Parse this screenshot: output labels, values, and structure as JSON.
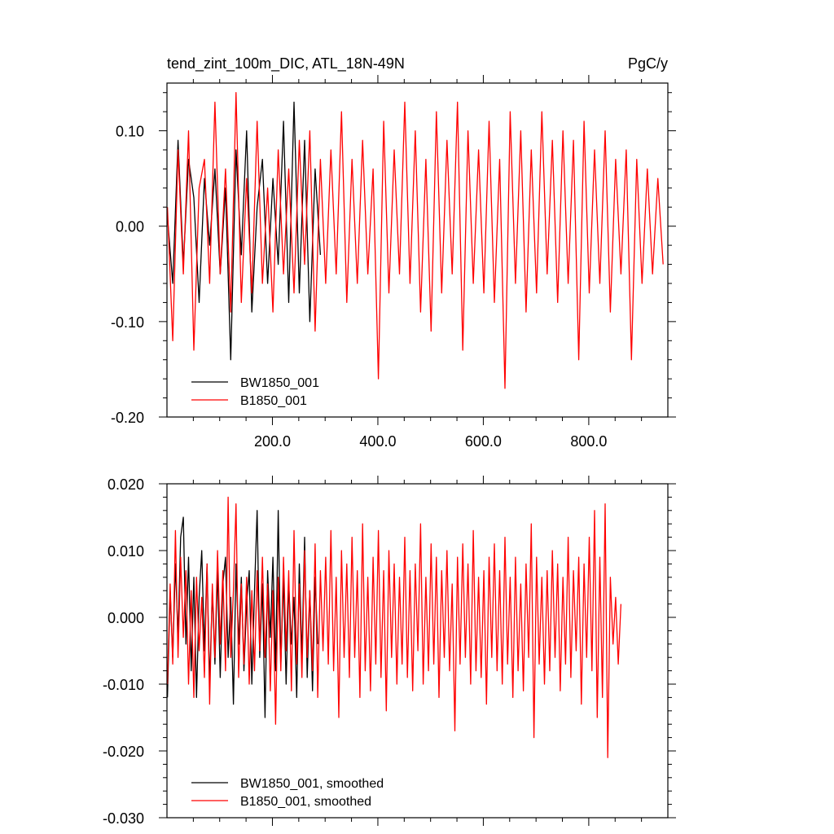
{
  "figure": {
    "title_left": "tend_zint_100m_DIC, ATL_18N-49N",
    "title_right": "PgC/y"
  },
  "chart_data": [
    {
      "type": "line",
      "id": "raw",
      "xlim": [
        0,
        950
      ],
      "ylim": [
        -0.2,
        0.15
      ],
      "xticks": [
        200,
        400,
        600,
        800
      ],
      "xtick_labels": [
        "200.0",
        "400.0",
        "600.0",
        "800.0"
      ],
      "yticks": [
        -0.2,
        -0.1,
        0.0,
        0.1
      ],
      "ytick_labels": [
        "-0.20",
        "-0.10",
        "0.00",
        "0.10"
      ],
      "grid": false,
      "legend_position": "bottom-left",
      "series": [
        {
          "name": "BW1850_001",
          "color": "#000000",
          "x_start": 1,
          "x_step": 10,
          "values": [
            0.01,
            -0.06,
            0.09,
            -0.04,
            0.07,
            0.03,
            -0.08,
            0.05,
            -0.02,
            0.06,
            -0.05,
            0.04,
            -0.14,
            0.08,
            -0.03,
            0.1,
            -0.09,
            0.02,
            0.07,
            -0.06,
            0.05,
            -0.04,
            0.11,
            -0.08,
            0.13,
            -0.07,
            0.09,
            -0.1,
            0.06,
            -0.03
          ]
        },
        {
          "name": "B1850_001",
          "color": "#ff0000",
          "x_start": 1,
          "x_step": 10,
          "values": [
            0.02,
            -0.12,
            0.08,
            -0.05,
            0.1,
            -0.13,
            0.04,
            0.07,
            -0.06,
            0.13,
            -0.05,
            0.06,
            -0.09,
            0.14,
            -0.08,
            0.05,
            -0.07,
            0.11,
            -0.06,
            0.04,
            -0.09,
            0.08,
            -0.05,
            0.06,
            -0.07,
            0.09,
            -0.04,
            0.1,
            -0.11,
            0.07,
            -0.06,
            0.08,
            -0.05,
            0.12,
            -0.08,
            0.07,
            -0.06,
            0.09,
            -0.05,
            0.06,
            -0.16,
            0.11,
            -0.07,
            0.08,
            -0.05,
            0.13,
            -0.06,
            0.1,
            -0.09,
            0.07,
            -0.11,
            0.12,
            -0.07,
            0.09,
            -0.05,
            0.13,
            -0.13,
            0.1,
            -0.06,
            0.08,
            -0.07,
            0.11,
            -0.08,
            0.07,
            -0.17,
            0.12,
            -0.06,
            0.1,
            -0.09,
            0.08,
            -0.07,
            0.12,
            -0.05,
            0.09,
            -0.08,
            0.1,
            -0.06,
            0.09,
            -0.14,
            0.11,
            -0.07,
            0.08,
            -0.06,
            0.1,
            -0.09,
            0.07,
            -0.05,
            0.08,
            -0.14,
            0.07,
            -0.06,
            0.06,
            -0.05,
            0.05,
            -0.04
          ]
        }
      ]
    },
    {
      "type": "line",
      "id": "smoothed",
      "xlim": [
        0,
        950
      ],
      "ylim": [
        -0.03,
        0.02
      ],
      "xticks": [
        200,
        400,
        600,
        800
      ],
      "ytick_labels": [
        "-0.030",
        "-0.020",
        "-0.010",
        "0.000",
        "0.010",
        "0.020"
      ],
      "yticks": [
        -0.03,
        -0.02,
        -0.01,
        0.0,
        0.01,
        0.02
      ],
      "grid": false,
      "legend_position": "bottom-left",
      "series": [
        {
          "name": "BW1850_001, smoothed",
          "color": "#000000",
          "x_start": 1,
          "x_step": 5,
          "values": [
            -0.012,
            0.004,
            -0.006,
            0.008,
            -0.003,
            0.012,
            0.015,
            -0.004,
            0.009,
            -0.008,
            0.006,
            -0.012,
            0.003,
            0.01,
            -0.005,
            0.008,
            -0.01,
            0.004,
            -0.007,
            0.007,
            -0.009,
            0.005,
            0.009,
            -0.006,
            0.003,
            -0.013,
            0.008,
            -0.004,
            0.006,
            -0.008,
            0.002,
            0.007,
            -0.01,
            0.004,
            0.016,
            -0.006,
            0.005,
            -0.015,
            0.007,
            -0.003,
            0.009,
            -0.008,
            0.016,
            -0.007,
            0.006,
            -0.01,
            0.005,
            -0.004,
            0.003,
            -0.012,
            0.008,
            -0.006,
            0.012,
            -0.009,
            0.004,
            -0.011,
            0.006,
            -0.004
          ]
        },
        {
          "name": "B1850_001, smoothed",
          "color": "#ff0000",
          "x_start": 1,
          "x_step": 5,
          "values": [
            -0.01,
            0.005,
            -0.007,
            0.013,
            -0.006,
            0.009,
            -0.003,
            0.007,
            -0.01,
            0.004,
            -0.012,
            0.006,
            -0.005,
            0.003,
            -0.009,
            0.008,
            -0.013,
            0.005,
            -0.006,
            0.01,
            -0.004,
            0.007,
            -0.008,
            0.018,
            -0.006,
            0.004,
            0.017,
            -0.009,
            0.005,
            -0.007,
            0.006,
            -0.01,
            0.004,
            -0.008,
            0.007,
            -0.005,
            0.009,
            -0.006,
            0.005,
            -0.011,
            0.004,
            -0.016,
            0.006,
            -0.008,
            0.009,
            -0.005,
            0.007,
            -0.011,
            0.013,
            -0.007,
            0.005,
            -0.009,
            0.01,
            -0.006,
            0.004,
            -0.008,
            0.011,
            -0.012,
            0.007,
            -0.005,
            0.009,
            -0.007,
            0.013,
            -0.008,
            0.006,
            -0.015,
            0.01,
            -0.006,
            0.008,
            -0.009,
            0.012,
            -0.006,
            0.007,
            -0.012,
            0.014,
            -0.008,
            0.006,
            -0.011,
            0.009,
            -0.007,
            0.013,
            -0.009,
            0.007,
            -0.014,
            0.01,
            -0.006,
            0.008,
            -0.01,
            0.006,
            -0.007,
            0.012,
            -0.009,
            0.007,
            -0.011,
            0.008,
            -0.005,
            0.014,
            -0.01,
            0.006,
            -0.008,
            0.011,
            -0.007,
            0.009,
            -0.012,
            0.007,
            -0.006,
            0.01,
            -0.008,
            0.005,
            -0.017,
            0.009,
            -0.007,
            0.011,
            -0.006,
            0.008,
            -0.01,
            0.013,
            -0.008,
            0.006,
            -0.009,
            0.007,
            -0.013,
            0.009,
            -0.006,
            0.011,
            -0.008,
            0.007,
            -0.01,
            0.012,
            -0.007,
            0.006,
            -0.012,
            0.009,
            -0.008,
            0.005,
            -0.011,
            0.008,
            -0.006,
            0.014,
            -0.018,
            0.009,
            -0.007,
            0.006,
            -0.01,
            0.007,
            -0.008,
            0.01,
            -0.006,
            0.008,
            -0.011,
            0.006,
            -0.007,
            0.012,
            -0.009,
            0.007,
            -0.005,
            0.009,
            -0.013,
            0.008,
            -0.006,
            0.012,
            -0.008,
            0.016,
            -0.015,
            0.009,
            -0.012,
            0.017,
            -0.021,
            0.006,
            -0.004,
            0.003,
            -0.007,
            0.002
          ]
        }
      ]
    }
  ]
}
